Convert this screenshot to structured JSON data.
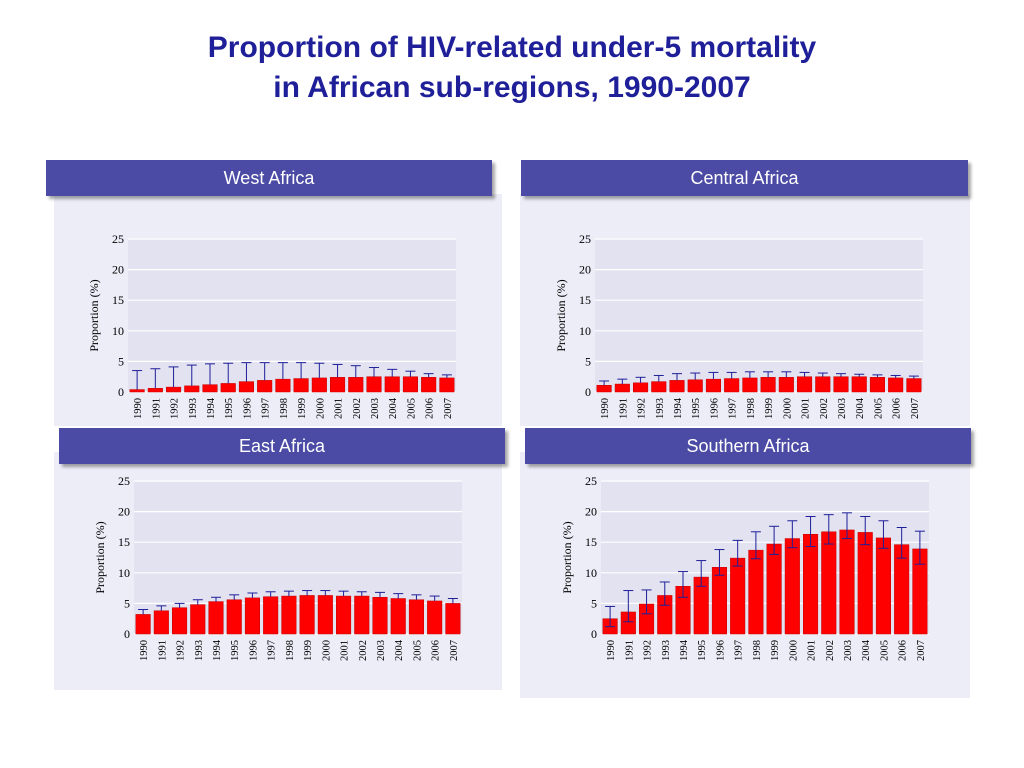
{
  "slide": {
    "title_line1": "Proportion of HIV-related under-5 mortality",
    "title_line2": "in African sub-regions, 1990-2007"
  },
  "colors": {
    "bar": "#ff0000",
    "plot_bg": "#e2e2f1",
    "header": "#4b4ba6",
    "panel": "#ecedf7",
    "error_bar": "#1f1f99"
  },
  "chart_data": [
    {
      "type": "bar",
      "title": "West Africa",
      "ylabel": "Proportion (%)",
      "xlabel": "",
      "ylim": [
        0,
        25
      ],
      "yticks": [
        "0",
        "5",
        "10",
        "15",
        "20",
        "25"
      ],
      "grid": true,
      "categories": [
        "1990",
        "1991",
        "1992",
        "1993",
        "1994",
        "1995",
        "1996",
        "1997",
        "1998",
        "1999",
        "2000",
        "2001",
        "2002",
        "2003",
        "2004",
        "2005",
        "2006",
        "2007"
      ],
      "values": [
        0.4,
        0.6,
        0.8,
        1.0,
        1.2,
        1.4,
        1.7,
        1.9,
        2.1,
        2.2,
        2.3,
        2.4,
        2.4,
        2.5,
        2.5,
        2.5,
        2.4,
        2.3
      ],
      "upper": [
        3.5,
        3.8,
        4.1,
        4.4,
        4.6,
        4.7,
        4.8,
        4.8,
        4.8,
        4.8,
        4.7,
        4.5,
        4.3,
        4.0,
        3.7,
        3.4,
        3.0,
        2.8
      ]
    },
    {
      "type": "bar",
      "title": "Central Africa",
      "ylabel": "Proportion (%)",
      "xlabel": "",
      "ylim": [
        0,
        25
      ],
      "yticks": [
        "0",
        "5",
        "10",
        "15",
        "20",
        "25"
      ],
      "grid": true,
      "categories": [
        "1990",
        "1991",
        "1992",
        "1993",
        "1994",
        "1995",
        "1996",
        "1997",
        "1998",
        "1999",
        "2000",
        "2001",
        "2002",
        "2003",
        "2004",
        "2005",
        "2006",
        "2007"
      ],
      "values": [
        1.1,
        1.3,
        1.5,
        1.7,
        1.9,
        2.0,
        2.1,
        2.2,
        2.3,
        2.4,
        2.4,
        2.5,
        2.5,
        2.5,
        2.5,
        2.4,
        2.3,
        2.2
      ],
      "upper": [
        1.8,
        2.1,
        2.4,
        2.7,
        3.0,
        3.1,
        3.2,
        3.2,
        3.3,
        3.3,
        3.3,
        3.2,
        3.1,
        3.0,
        2.9,
        2.8,
        2.7,
        2.6
      ]
    },
    {
      "type": "bar",
      "title": "East Africa",
      "ylabel": "Proportion (%)",
      "xlabel": "",
      "ylim": [
        0,
        25
      ],
      "yticks": [
        "0",
        "5",
        "10",
        "15",
        "20",
        "25"
      ],
      "grid": true,
      "categories": [
        "1990",
        "1991",
        "1992",
        "1993",
        "1994",
        "1995",
        "1996",
        "1997",
        "1998",
        "1999",
        "2000",
        "2001",
        "2002",
        "2003",
        "2004",
        "2005",
        "2006",
        "2007"
      ],
      "values": [
        3.2,
        3.8,
        4.3,
        4.8,
        5.3,
        5.6,
        5.9,
        6.1,
        6.2,
        6.3,
        6.3,
        6.2,
        6.2,
        6.0,
        5.8,
        5.6,
        5.4,
        5.0
      ],
      "upper": [
        4.0,
        4.6,
        5.0,
        5.6,
        6.0,
        6.4,
        6.7,
        6.9,
        7.0,
        7.1,
        7.1,
        7.0,
        6.9,
        6.8,
        6.6,
        6.4,
        6.2,
        5.8
      ]
    },
    {
      "type": "bar",
      "title": "Southern Africa",
      "ylabel": "Proportion (%)",
      "xlabel": "",
      "ylim": [
        0,
        25
      ],
      "yticks": [
        "0",
        "5",
        "10",
        "15",
        "20",
        "25"
      ],
      "grid": true,
      "categories": [
        "1990",
        "1991",
        "1992",
        "1993",
        "1994",
        "1995",
        "1996",
        "1997",
        "1998",
        "1999",
        "2000",
        "2001",
        "2002",
        "2003",
        "2004",
        "2005",
        "2006",
        "2007"
      ],
      "values": [
        2.5,
        3.6,
        4.9,
        6.3,
        7.8,
        9.3,
        10.9,
        12.4,
        13.7,
        14.7,
        15.6,
        16.3,
        16.7,
        17.0,
        16.6,
        15.7,
        14.6,
        13.9
      ],
      "upper": [
        4.5,
        7.1,
        7.2,
        8.5,
        10.2,
        12.0,
        13.8,
        15.3,
        16.7,
        17.6,
        18.5,
        19.2,
        19.5,
        19.8,
        19.2,
        18.5,
        17.4,
        16.8
      ],
      "lower": [
        1.2,
        2.0,
        3.3,
        4.7,
        6.0,
        7.8,
        9.6,
        11.1,
        12.3,
        13.0,
        14.1,
        14.3,
        14.7,
        15.6,
        14.6,
        14.0,
        12.4,
        11.4
      ]
    }
  ]
}
